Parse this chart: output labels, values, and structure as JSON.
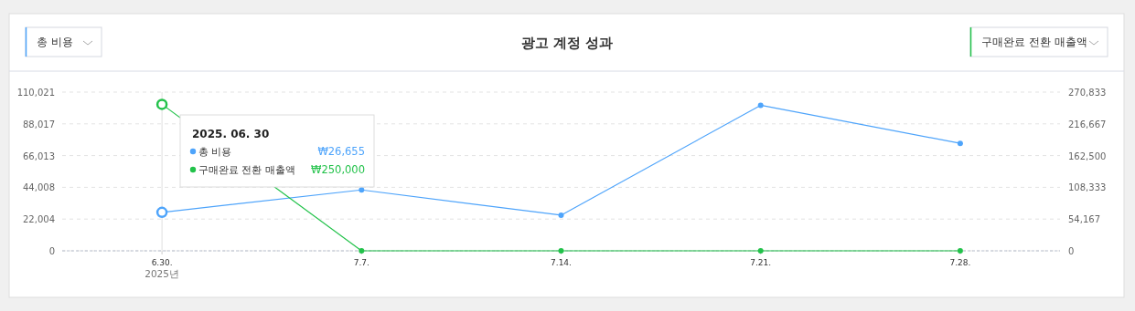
{
  "chart_data": {
    "type": "line",
    "title": "광고 계정 성과",
    "categories": [
      "6.30.",
      "7.7.",
      "7.14.",
      "7.21.",
      "7.28."
    ],
    "series": [
      {
        "name": "총 비용",
        "color": "#4ea4fb",
        "values": [
          26655,
          42200,
          24700,
          100900,
          74500
        ]
      },
      {
        "name": "구매완료 전환 매출액",
        "color": "#22c24a",
        "axis": "y2",
        "values": [
          250000,
          0,
          0,
          0,
          0
        ]
      }
    ],
    "ylim": [
      0,
      110021
    ],
    "yticks": [
      0,
      {
        "value": 22004,
        "label": "22,004"
      },
      {
        "value": 44008,
        "label": "44,008"
      },
      {
        "value": 66013,
        "label": "66,013"
      },
      {
        "value": 88017,
        "label": "88,017"
      },
      {
        "value": 110021,
        "label": "110,021"
      }
    ],
    "y2lim": [
      0,
      270833
    ],
    "y2ticks": [
      0,
      {
        "value": 54167,
        "label": "54,167"
      },
      {
        "value": 108333,
        "label": "108,333"
      },
      {
        "value": 162500,
        "label": "162,500"
      },
      {
        "value": 216667,
        "label": "216,667"
      },
      {
        "value": 270833,
        "label": "270,833"
      }
    ],
    "grid": "y",
    "marker": "circle",
    "line_style": "solid",
    "legend": "top left",
    "ref_lines": [
      {
        "axis": "x",
        "value": "6.30.",
        "color": "#e0e0e0"
      }
    ],
    "annotations": [
      "2025년",
      "2025. 06. 30",
      "₩26,655",
      "₩250,000"
    ]
  }
}
